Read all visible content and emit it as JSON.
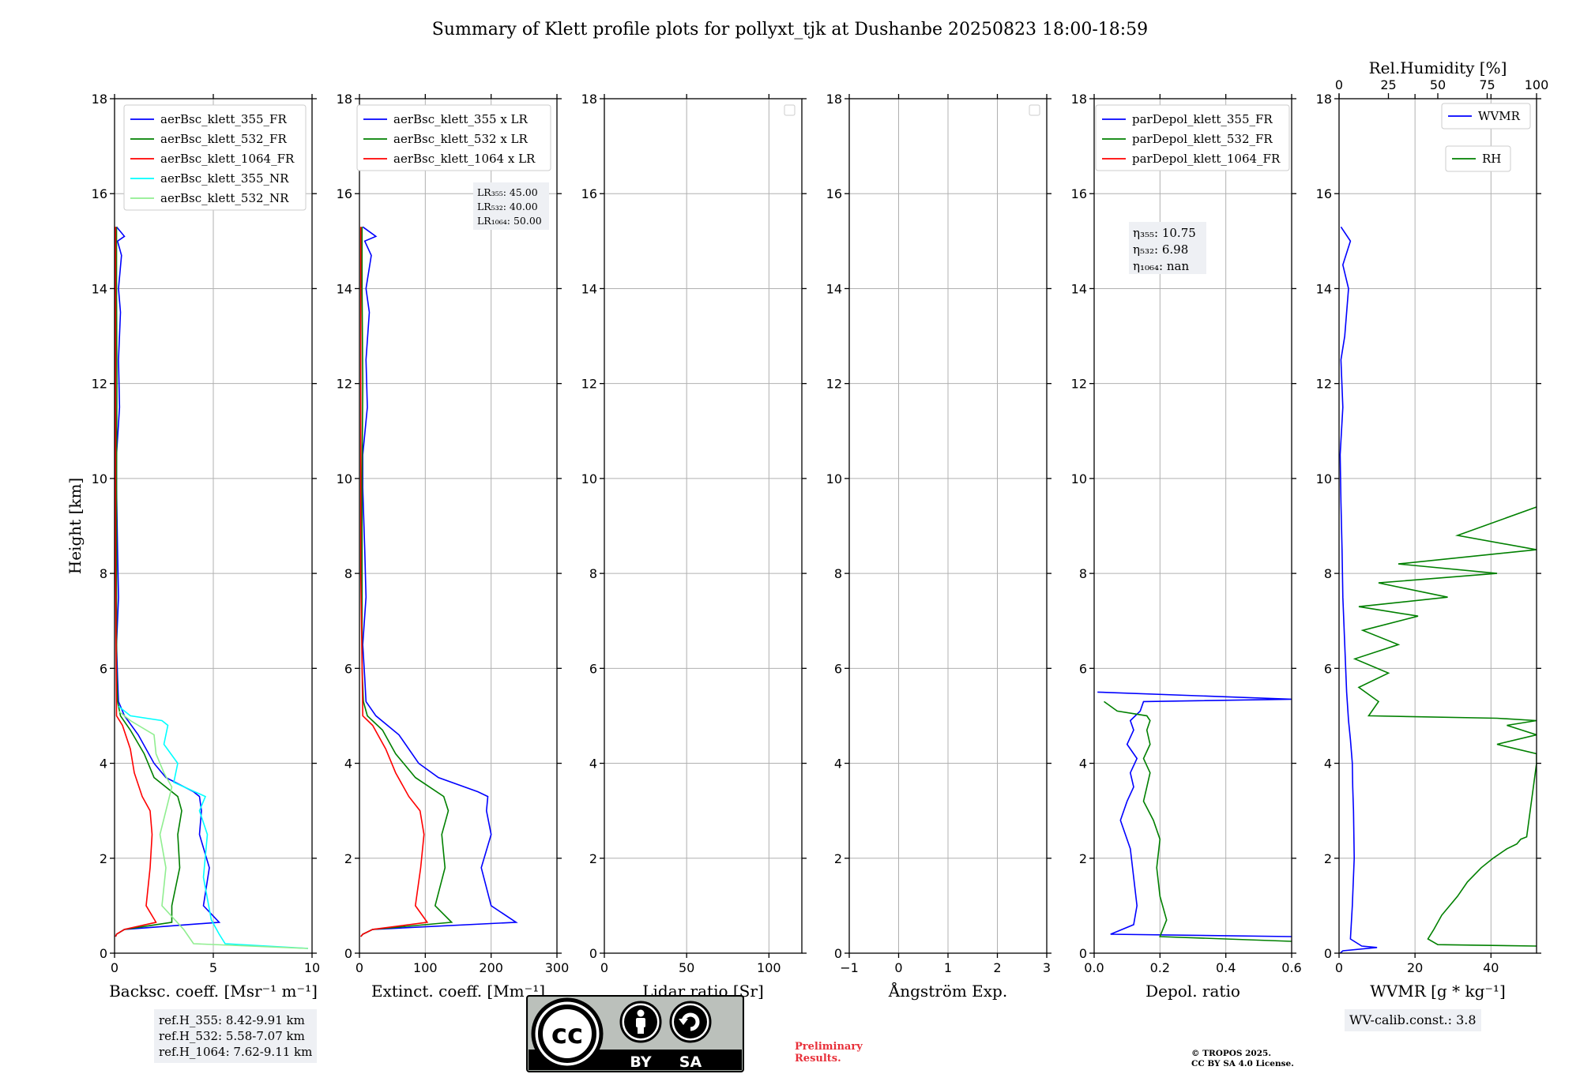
{
  "title": "Summary of Klett profile plots for pollyxt_tjk at Dushanbe 20250823 18:00-18:59",
  "y_label": "Height [km]",
  "chart_data": [
    {
      "type": "line",
      "id": "backscatter",
      "xlabel": "Backsc. coeff. [Msr⁻¹ m⁻¹]",
      "xlim": [
        0,
        10
      ],
      "ylim": [
        0,
        18
      ],
      "xticks": [
        "0",
        "5",
        "10"
      ],
      "xtick_values": [
        0,
        5,
        10
      ],
      "legend": "top-right",
      "series": [
        {
          "name": "aerBsc_klett_355_FR",
          "color": "#0000ff",
          "x": [
            0.05,
            0.1,
            0.5,
            5.3,
            4.5,
            4.8,
            4.3,
            4.4,
            4.3,
            4.0,
            2.6,
            2.0,
            1.2,
            0.5,
            0.2,
            0.15,
            0.1,
            0.2,
            0.15,
            0.1,
            0.1,
            0.25,
            0.2,
            0.3,
            0.2,
            0.35,
            0.15,
            0.5,
            0.1
          ],
          "y": [
            0.35,
            0.4,
            0.5,
            0.65,
            1.0,
            1.8,
            2.5,
            3.0,
            3.3,
            3.4,
            3.7,
            4.0,
            4.6,
            5.0,
            5.3,
            5.8,
            6.5,
            7.5,
            8.5,
            9.8,
            10.5,
            11.5,
            12.5,
            13.5,
            14.0,
            14.7,
            15.0,
            15.1,
            15.3
          ]
        },
        {
          "name": "aerBsc_klett_532_FR",
          "color": "#008000",
          "x": [
            0.05,
            0.1,
            0.5,
            2.9,
            2.9,
            3.3,
            3.2,
            3.4,
            3.2,
            2.0,
            1.5,
            0.8,
            0.3,
            0.15,
            0.1,
            0.1,
            0.1,
            0.12,
            0.1,
            0.1,
            0.1
          ],
          "y": [
            0.35,
            0.4,
            0.5,
            0.65,
            1.0,
            1.8,
            2.5,
            3.0,
            3.3,
            3.7,
            4.2,
            4.7,
            5.0,
            5.3,
            6.0,
            8.0,
            10.0,
            12.0,
            14.0,
            15.0,
            15.3
          ]
        },
        {
          "name": "aerBsc_klett_1064_FR",
          "color": "#ff0000",
          "x": [
            0.05,
            0.1,
            0.5,
            2.1,
            1.6,
            1.8,
            1.9,
            1.8,
            1.4,
            1.0,
            0.8,
            0.4,
            0.1,
            0.05,
            0.05
          ],
          "y": [
            0.35,
            0.4,
            0.5,
            0.65,
            1.0,
            1.8,
            2.5,
            3.0,
            3.3,
            3.8,
            4.3,
            4.8,
            5.0,
            8.0,
            15.3
          ]
        },
        {
          "name": "aerBsc_klett_355_NR",
          "color": "#00ffff",
          "x": [
            9.8,
            5.6,
            5.3,
            4.9,
            4.5,
            4.7,
            4.3,
            4.6,
            3.0,
            3.2,
            2.5,
            2.7,
            2.4,
            0.8,
            0.2
          ],
          "y": [
            0.1,
            0.2,
            0.4,
            0.7,
            1.6,
            2.5,
            3.0,
            3.3,
            3.6,
            4.0,
            4.4,
            4.8,
            4.9,
            5.0,
            5.2
          ]
        },
        {
          "name": "aerBsc_klett_532_NR",
          "color": "#90ee90",
          "x": [
            9.8,
            4.0,
            3.5,
            2.4,
            2.6,
            2.3,
            2.6,
            2.9,
            2.5,
            2.1,
            2.0,
            0.8,
            0.2
          ],
          "y": [
            0.1,
            0.2,
            0.5,
            1.0,
            1.8,
            2.5,
            3.0,
            3.5,
            3.8,
            4.2,
            4.6,
            4.9,
            5.1
          ]
        }
      ]
    },
    {
      "type": "line",
      "id": "extinction",
      "xlabel": "Extinct. coeff. [Mm⁻¹]",
      "xlim": [
        0,
        300
      ],
      "ylim": [
        0,
        18
      ],
      "xticks": [
        "0",
        "100",
        "200",
        "300"
      ],
      "xtick_values": [
        0,
        100,
        200,
        300
      ],
      "legend": "top-right",
      "annotation": [
        "LR₃₅₅: 45.00",
        "LR₅₃₂: 40.00",
        "LR₁₀₆₄: 50.00"
      ],
      "series": [
        {
          "name": "aerBsc_klett_355 x LR",
          "color": "#0000ff",
          "x": [
            2,
            5,
            20,
            238,
            200,
            185,
            200,
            193,
            195,
            180,
            120,
            90,
            60,
            25,
            10,
            8,
            5,
            10,
            8,
            5,
            5,
            12,
            10,
            15,
            10,
            18,
            8,
            25,
            5
          ],
          "y": [
            0.35,
            0.4,
            0.5,
            0.65,
            1.0,
            1.8,
            2.5,
            3.0,
            3.3,
            3.4,
            3.7,
            4.0,
            4.6,
            5.0,
            5.3,
            5.8,
            6.5,
            7.5,
            8.5,
            9.8,
            10.5,
            11.5,
            12.5,
            13.5,
            14.0,
            14.7,
            15.0,
            15.1,
            15.3
          ]
        },
        {
          "name": "aerBsc_klett_532 x LR",
          "color": "#008000",
          "x": [
            2,
            5,
            20,
            140,
            115,
            130,
            125,
            135,
            128,
            85,
            55,
            35,
            12,
            6,
            4,
            4,
            4,
            5,
            4,
            4,
            4
          ],
          "y": [
            0.35,
            0.4,
            0.5,
            0.65,
            1.0,
            1.8,
            2.5,
            3.0,
            3.3,
            3.7,
            4.2,
            4.7,
            5.0,
            5.3,
            6.0,
            8.0,
            10.0,
            12.0,
            14.0,
            15.0,
            15.3
          ]
        },
        {
          "name": "aerBsc_klett_1064 x LR",
          "color": "#ff0000",
          "x": [
            2,
            5,
            20,
            103,
            85,
            93,
            98,
            92,
            75,
            55,
            40,
            20,
            5,
            2,
            2
          ],
          "y": [
            0.35,
            0.4,
            0.5,
            0.65,
            1.0,
            1.8,
            2.5,
            3.0,
            3.3,
            3.8,
            4.3,
            4.8,
            5.0,
            8.0,
            15.3
          ]
        }
      ]
    },
    {
      "type": "line",
      "id": "lidar_ratio",
      "xlabel": "Lidar ratio [Sr]",
      "xlim": [
        0,
        120
      ],
      "ylim": [
        0,
        18
      ],
      "xticks": [
        "0",
        "50",
        "100"
      ],
      "xtick_values": [
        0,
        50,
        100
      ],
      "legend": "top-right (empty)",
      "series": []
    },
    {
      "type": "line",
      "id": "angstrom",
      "xlabel": "Ångström Exp.",
      "xlim": [
        -1,
        3
      ],
      "ylim": [
        0,
        18
      ],
      "xticks": [
        "−1",
        "0",
        "1",
        "2",
        "3"
      ],
      "xtick_values": [
        -1,
        0,
        1,
        2,
        3
      ],
      "legend": "top-right (empty)",
      "series": []
    },
    {
      "type": "line",
      "id": "depol",
      "xlabel": "Depol. ratio",
      "xlim": [
        0,
        0.6
      ],
      "ylim": [
        0,
        18
      ],
      "xticks": [
        "0.0",
        "0.2",
        "0.4",
        "0.6"
      ],
      "xtick_values": [
        0,
        0.2,
        0.4,
        0.6
      ],
      "legend": "top-left",
      "annotation": [
        "η₃₅₅: 10.75",
        "η₅₃₂: 6.98",
        "η₁₀₆₄: nan"
      ],
      "series": [
        {
          "name": "parDepol_klett_355_FR",
          "color": "#0000ff",
          "x": [
            0.6,
            0.05,
            0.12,
            0.13,
            0.12,
            0.11,
            0.08,
            0.1,
            0.12,
            0.11,
            0.13,
            0.1,
            0.12,
            0.11,
            0.14,
            0.15,
            0.6,
            0.01
          ],
          "y": [
            0.35,
            0.4,
            0.6,
            1.0,
            1.6,
            2.2,
            2.8,
            3.2,
            3.5,
            3.8,
            4.1,
            4.4,
            4.7,
            4.9,
            5.1,
            5.3,
            5.35,
            5.5
          ]
        },
        {
          "name": "parDepol_klett_532_FR",
          "color": "#008000",
          "x": [
            0.6,
            0.2,
            0.22,
            0.2,
            0.19,
            0.2,
            0.18,
            0.15,
            0.16,
            0.17,
            0.15,
            0.17,
            0.16,
            0.17,
            0.16,
            0.07,
            0.03
          ],
          "y": [
            0.25,
            0.35,
            0.7,
            1.2,
            1.8,
            2.4,
            2.8,
            3.2,
            3.5,
            3.8,
            4.1,
            4.4,
            4.7,
            4.9,
            5.0,
            5.1,
            5.3
          ]
        },
        {
          "name": "parDepol_klett_1064_FR",
          "color": "#ff0000",
          "x": [],
          "y": []
        }
      ]
    },
    {
      "type": "line",
      "id": "wvmr",
      "xlabel": "WVMR [g * kg⁻¹]",
      "xlim": [
        0,
        52
      ],
      "ylim": [
        0,
        18
      ],
      "xticks": [
        "0",
        "20",
        "40"
      ],
      "xtick_values": [
        0,
        20,
        40
      ],
      "top_axis": {
        "label": "Rel.Humidity [%]",
        "xlim": [
          0,
          100
        ],
        "ticks": [
          "0",
          "25",
          "50",
          "75",
          "100"
        ],
        "values": [
          0,
          25,
          50,
          75,
          100
        ]
      },
      "info": "WV-calib.const.: 3.8",
      "series": [
        {
          "name": "WVMR",
          "color": "#0000ff",
          "axis": "bottom",
          "x": [
            0.3,
            1,
            10,
            6,
            3,
            3.5,
            4,
            3.8,
            3.6,
            3.5,
            3,
            2.5,
            2,
            1.5,
            1,
            0.8,
            0.5,
            0.3,
            1,
            0.5,
            1.5,
            2.5,
            1,
            3,
            0.5
          ],
          "y": [
            0.0,
            0.05,
            0.12,
            0.15,
            0.3,
            1.0,
            2.0,
            3.0,
            3.5,
            4.0,
            4.5,
            4.9,
            5.5,
            6.5,
            7.5,
            8.5,
            9.5,
            10.5,
            11.5,
            12.5,
            13.0,
            14.0,
            14.5,
            15.0,
            15.3
          ]
        },
        {
          "name": "RH",
          "color": "#008000",
          "axis": "top",
          "x": [
            100,
            50,
            45,
            48,
            52,
            60,
            65,
            72,
            78,
            85,
            90,
            92,
            95,
            100,
            100,
            80,
            100,
            85,
            100,
            80,
            15,
            20,
            10,
            25,
            8,
            30,
            12,
            40,
            10,
            55,
            20,
            80,
            30,
            100,
            60,
            100
          ],
          "y": [
            0.15,
            0.18,
            0.3,
            0.5,
            0.8,
            1.2,
            1.5,
            1.8,
            2.0,
            2.2,
            2.3,
            2.4,
            2.45,
            4.0,
            4.2,
            4.4,
            4.6,
            4.8,
            4.9,
            4.95,
            5.0,
            5.3,
            5.6,
            5.9,
            6.2,
            6.5,
            6.8,
            7.1,
            7.3,
            7.5,
            7.8,
            8.0,
            8.2,
            8.5,
            8.8,
            9.4
          ]
        }
      ]
    }
  ],
  "ref_box": [
    "ref.H_355: 8.42-9.91 km",
    "ref.H_532: 5.58-7.07 km",
    "ref.H_1064: 7.62-9.11 km"
  ],
  "logo": {
    "main": "cc",
    "by": "BY",
    "sa": "SA"
  },
  "preliminary": [
    "Preliminary",
    "Results."
  ],
  "copyright": [
    "© TROPOS 2025.",
    "CC BY SA 4.0 License."
  ]
}
